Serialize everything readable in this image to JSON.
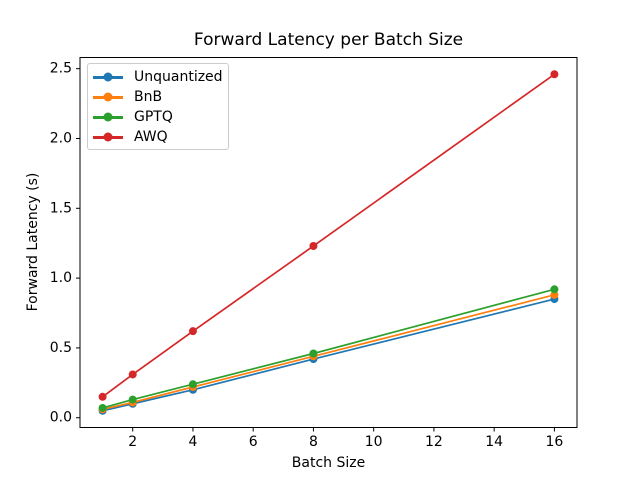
{
  "chart_data": {
    "type": "line",
    "title": "Forward Latency per Batch Size",
    "xlabel": "Batch Size",
    "ylabel": "Forward Latency (s)",
    "x": [
      1,
      2,
      4,
      8,
      16
    ],
    "series": [
      {
        "name": "Unquantized",
        "color": "#1f77b4",
        "values": [
          0.05,
          0.1,
          0.2,
          0.42,
          0.85
        ]
      },
      {
        "name": "BnB",
        "color": "#ff7f0e",
        "values": [
          0.06,
          0.11,
          0.22,
          0.44,
          0.88
        ]
      },
      {
        "name": "GPTQ",
        "color": "#2ca02c",
        "values": [
          0.07,
          0.13,
          0.24,
          0.46,
          0.92
        ]
      },
      {
        "name": "AWQ",
        "color": "#d62728",
        "values": [
          0.15,
          0.31,
          0.62,
          1.23,
          2.46
        ]
      }
    ],
    "xlim": [
      0.25,
      16.75
    ],
    "ylim": [
      -0.07,
      2.58
    ],
    "xticks": {
      "values": [
        2,
        4,
        6,
        8,
        10,
        12,
        14,
        16
      ],
      "labels": [
        "2",
        "4",
        "6",
        "8",
        "10",
        "12",
        "14",
        "16"
      ]
    },
    "yticks": {
      "values": [
        0,
        0.5,
        1.0,
        1.5,
        2.0,
        2.5
      ],
      "labels": [
        "0.0",
        "0.5",
        "1.0",
        "1.5",
        "2.0",
        "2.5"
      ]
    },
    "legend": {
      "position": "upper-left"
    },
    "grid": false,
    "marker": "circle",
    "line_width": 1.7,
    "marker_radius": 4,
    "spine_color": "#000000",
    "background": "#ffffff"
  }
}
